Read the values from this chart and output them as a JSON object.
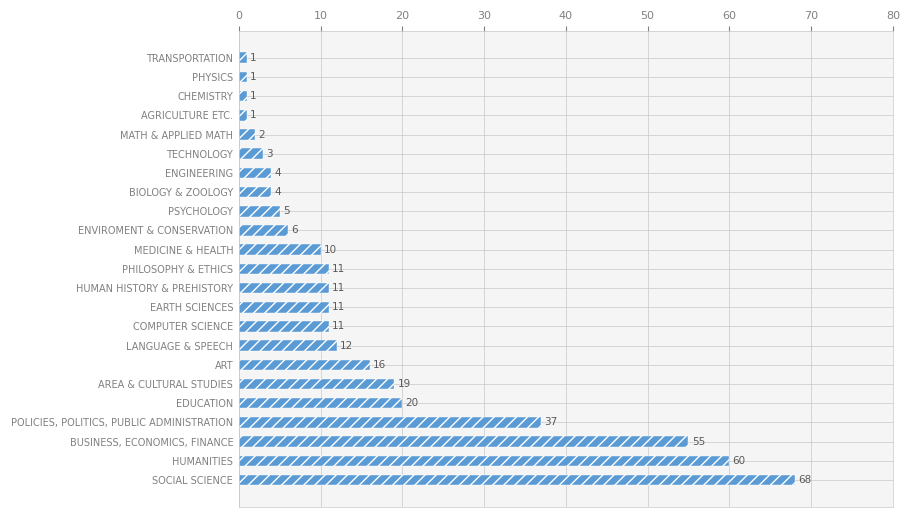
{
  "categories": [
    "TRANSPORTATION",
    "PHYSICS",
    "CHEMISTRY",
    "AGRICULTURE ETC.",
    "MATH & APPLIED MATH",
    "TECHNOLOGY",
    "ENGINEERING",
    "BIOLOGY & ZOOLOGY",
    "PSYCHOLOGY",
    "ENVIROMENT & CONSERVATION",
    "MEDICINE & HEALTH",
    "PHILOSOPHY & ETHICS",
    "HUMAN HISTORY & PREHISTORY",
    "EARTH SCIENCES",
    "COMPUTER SCIENCE",
    "LANGUAGE & SPEECH",
    "ART",
    "AREA & CULTURAL STUDIES",
    "EDUCATION",
    "POLICIES, POLITICS, PUBLIC ADMINISTRATION",
    "BUSINESS, ECONOMICS, FINANCE",
    "HUMANITIES",
    "SOCIAL SCIENCE"
  ],
  "values": [
    1,
    1,
    1,
    1,
    2,
    3,
    4,
    4,
    5,
    6,
    10,
    11,
    11,
    11,
    11,
    12,
    16,
    19,
    20,
    37,
    55,
    60,
    68
  ],
  "bar_color": "#5B9BD5",
  "hatch_pattern": "///",
  "hatch_color": "#FFFFFF",
  "label_color": "#808080",
  "value_label_color": "#595959",
  "background_color": "#FFFFFF",
  "grid_color": "#C8C8C8",
  "xlim": [
    0,
    80
  ],
  "xticks": [
    0,
    10,
    20,
    30,
    40,
    50,
    60,
    70,
    80
  ],
  "tick_label_fontsize": 8,
  "category_fontsize": 7,
  "value_fontsize": 7.5,
  "bar_height": 0.55
}
